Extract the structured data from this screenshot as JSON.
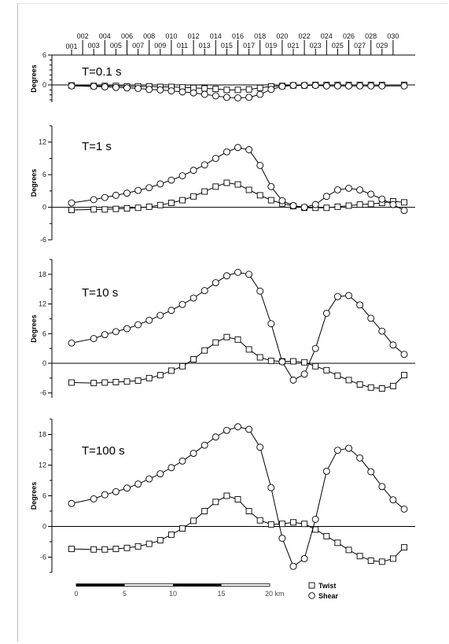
{
  "chart_data": {
    "type": "line",
    "stations": [
      "001",
      "002",
      "003",
      "004",
      "005",
      "006",
      "007",
      "008",
      "009",
      "010",
      "011",
      "012",
      "013",
      "014",
      "015",
      "016",
      "017",
      "018",
      "019",
      "020",
      "021",
      "022",
      "023",
      "024",
      "025",
      "026",
      "027",
      "028",
      "029",
      "030"
    ],
    "legend": [
      {
        "label": "Twist",
        "marker": "square"
      },
      {
        "label": "Shear",
        "marker": "circle"
      }
    ],
    "scale_bar": {
      "ticks": [
        "0",
        "5",
        "10",
        "15",
        "20 km"
      ]
    },
    "panels": [
      {
        "title": "T=0.1 s",
        "ylabel": "Degrees",
        "ylim": [
          -4,
          6
        ],
        "yticks": [
          6,
          0
        ],
        "twist_x": [
          0,
          2,
          3,
          4,
          5,
          6,
          7,
          8,
          9,
          10,
          11,
          12,
          13,
          14,
          15,
          16,
          17,
          18,
          19,
          20,
          21,
          22,
          23,
          24,
          25,
          26,
          27,
          28,
          30
        ],
        "twist_y": [
          -0.1,
          -0.2,
          -0.2,
          -0.2,
          -0.3,
          -0.3,
          -0.3,
          -0.4,
          -0.4,
          -0.5,
          -0.6,
          -0.7,
          -0.8,
          -1.0,
          -1.0,
          -0.9,
          -0.6,
          -0.3,
          -0.2,
          -0.1,
          -0.1,
          0,
          0,
          0,
          0,
          0,
          0,
          0,
          0
        ],
        "shear_x": [
          0,
          2,
          3,
          4,
          5,
          6,
          7,
          8,
          9,
          10,
          11,
          12,
          13,
          14,
          15,
          16,
          17,
          18,
          19,
          20,
          21,
          22,
          23,
          24,
          25,
          26,
          27,
          28,
          30
        ],
        "shear_y": [
          -0.2,
          -0.3,
          -0.4,
          -0.5,
          -0.6,
          -0.7,
          -0.9,
          -1.0,
          -1.2,
          -1.4,
          -1.6,
          -1.9,
          -2.2,
          -2.5,
          -2.6,
          -2.5,
          -1.9,
          -0.9,
          -0.3,
          -0.1,
          -0.1,
          -0.1,
          -0.2,
          -0.2,
          -0.2,
          -0.2,
          -0.2,
          -0.2,
          -0.2
        ]
      },
      {
        "title": "T=1 s",
        "ylabel": "Degrees",
        "ylim": [
          -6,
          15
        ],
        "yticks": [
          12,
          6,
          0,
          -6
        ],
        "twist_x": [
          0,
          2,
          3,
          4,
          5,
          6,
          7,
          8,
          9,
          10,
          11,
          12,
          13,
          14,
          15,
          16,
          17,
          18,
          19,
          20,
          21,
          22,
          23,
          24,
          25,
          26,
          27,
          28,
          29,
          30
        ],
        "twist_y": [
          -0.5,
          -0.4,
          -0.4,
          -0.3,
          -0.2,
          -0.1,
          0.1,
          0.4,
          0.8,
          1.3,
          2.0,
          2.9,
          3.8,
          4.5,
          4.2,
          3.2,
          2.2,
          1.3,
          0.7,
          0.2,
          -0.1,
          -0.1,
          -0.1,
          0.1,
          0.3,
          0.5,
          0.6,
          0.8,
          1.1,
          0.9
        ],
        "shear_x": [
          0,
          2,
          3,
          4,
          5,
          6,
          7,
          8,
          9,
          10,
          11,
          12,
          13,
          14,
          15,
          16,
          17,
          18,
          19,
          20,
          21,
          22,
          23,
          24,
          25,
          26,
          27,
          28,
          29,
          30
        ],
        "shear_y": [
          0.8,
          1.4,
          1.8,
          2.2,
          2.6,
          3.1,
          3.6,
          4.3,
          5.0,
          5.8,
          6.8,
          7.8,
          9.0,
          10.2,
          11.0,
          10.6,
          7.7,
          3.8,
          1.2,
          0.3,
          0,
          0.5,
          2.0,
          3.2,
          3.5,
          3.2,
          2.4,
          1.5,
          0.5,
          -0.6
        ]
      },
      {
        "title": "T=10 s",
        "ylabel": "Degrees",
        "ylim": [
          -7,
          21
        ],
        "yticks": [
          18,
          12,
          6,
          0,
          -6
        ],
        "twist_x": [
          0,
          2,
          3,
          4,
          5,
          6,
          7,
          8,
          9,
          10,
          11,
          12,
          13,
          14,
          15,
          16,
          17,
          18,
          19,
          20,
          21,
          22,
          23,
          24,
          25,
          26,
          27,
          28,
          29,
          30
        ],
        "twist_y": [
          -3.9,
          -4.0,
          -3.9,
          -3.8,
          -3.7,
          -3.5,
          -3.0,
          -2.4,
          -1.5,
          -0.6,
          0.8,
          2.6,
          4.2,
          5.3,
          4.8,
          2.8,
          1.2,
          0.5,
          0.4,
          0.4,
          0.2,
          -0.6,
          -1.4,
          -2.5,
          -3.4,
          -4.3,
          -4.9,
          -5.1,
          -4.6,
          -2.4
        ],
        "shear_x": [
          0,
          2,
          3,
          4,
          5,
          6,
          7,
          8,
          9,
          10,
          11,
          12,
          13,
          14,
          15,
          16,
          17,
          18,
          19,
          20,
          21,
          22,
          23,
          24,
          25,
          26,
          27,
          28,
          29,
          30
        ],
        "shear_y": [
          4.1,
          5.0,
          5.8,
          6.4,
          7.0,
          7.8,
          8.7,
          9.7,
          10.7,
          11.9,
          13.2,
          14.7,
          16.3,
          17.7,
          18.4,
          18.0,
          14.6,
          8.0,
          0.3,
          -3.4,
          -2.2,
          3.0,
          10.1,
          13.5,
          13.7,
          11.8,
          9.1,
          6.5,
          3.7,
          1.8
        ]
      },
      {
        "title": "T=100 s",
        "ylabel": "Degrees",
        "ylim": [
          -9,
          21
        ],
        "yticks": [
          18,
          12,
          6,
          0,
          -6
        ],
        "twist_x": [
          0,
          2,
          3,
          4,
          5,
          6,
          7,
          8,
          9,
          10,
          11,
          12,
          13,
          14,
          15,
          16,
          17,
          18,
          19,
          20,
          21,
          22,
          23,
          24,
          25,
          26,
          27,
          28,
          29,
          30
        ],
        "twist_y": [
          -4.4,
          -4.5,
          -4.5,
          -4.4,
          -4.2,
          -3.9,
          -3.4,
          -2.7,
          -1.6,
          -0.4,
          1.1,
          3.0,
          4.8,
          6.0,
          5.3,
          3.0,
          1.2,
          0.4,
          0.5,
          0.8,
          0.5,
          -0.6,
          -1.9,
          -3.2,
          -4.6,
          -5.8,
          -6.7,
          -6.9,
          -6.3,
          -4.1
        ],
        "shear_x": [
          0,
          2,
          3,
          4,
          5,
          6,
          7,
          8,
          9,
          10,
          11,
          12,
          13,
          14,
          15,
          16,
          17,
          18,
          19,
          20,
          21,
          22,
          23,
          24,
          25,
          26,
          27,
          28,
          29,
          30
        ],
        "shear_y": [
          4.5,
          5.4,
          6.2,
          6.8,
          7.5,
          8.3,
          9.3,
          10.3,
          11.5,
          12.8,
          14.3,
          15.9,
          17.5,
          18.8,
          19.5,
          19.0,
          15.5,
          7.6,
          -2.3,
          -7.8,
          -6.3,
          1.4,
          10.8,
          14.9,
          15.3,
          13.4,
          10.7,
          7.8,
          5.2,
          3.4
        ]
      }
    ]
  }
}
